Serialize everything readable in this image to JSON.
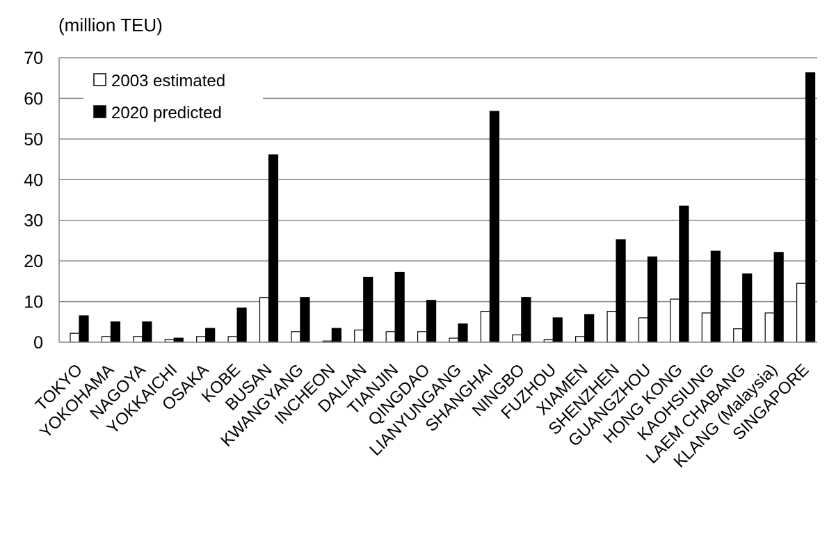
{
  "chart_data": {
    "type": "bar",
    "ylabel": "(million TEU)",
    "ylim": [
      0,
      70
    ],
    "yticks": [
      0,
      10,
      20,
      30,
      40,
      50,
      60,
      70
    ],
    "grid": "horizontal",
    "legend_position": "top-left",
    "categories": [
      "TOKYO",
      "YOKOHAMA",
      "NAGOYA",
      "YOKKAICHI",
      "OSAKA",
      "KOBE",
      "BUSAN",
      "KWANGYANG",
      "INCHEON",
      "DALIAN",
      "TIANJIN",
      "QINGDAO",
      "LIANYUNGANG",
      "SHANGHAI",
      "NINGBO",
      "FUZHOU",
      "XIAMEN",
      "SHENZHEN",
      "GUANGZHOU",
      "HONG KONG",
      "KAOHSIUNG",
      "LAEM CHABANG",
      "KLANG (Malaysia)",
      "SINGAPORE"
    ],
    "series": [
      {
        "name": "2003 estimated",
        "color": "#ffffff",
        "values": [
          2.2,
          1.4,
          1.4,
          0.6,
          1.4,
          1.4,
          11.0,
          2.6,
          0.3,
          3.0,
          2.6,
          2.6,
          1.0,
          7.6,
          1.8,
          0.6,
          1.4,
          7.6,
          6.0,
          10.6,
          7.2,
          3.3,
          7.2,
          14.5
        ]
      },
      {
        "name": "2020 predicted",
        "color": "#000000",
        "values": [
          6.5,
          5.0,
          5.0,
          1.0,
          3.4,
          8.4,
          46.1,
          11.0,
          3.4,
          16.0,
          17.2,
          10.3,
          4.5,
          56.8,
          11.0,
          6.0,
          6.8,
          25.2,
          21.0,
          33.5,
          22.4,
          16.8,
          22.1,
          66.3
        ]
      }
    ]
  }
}
